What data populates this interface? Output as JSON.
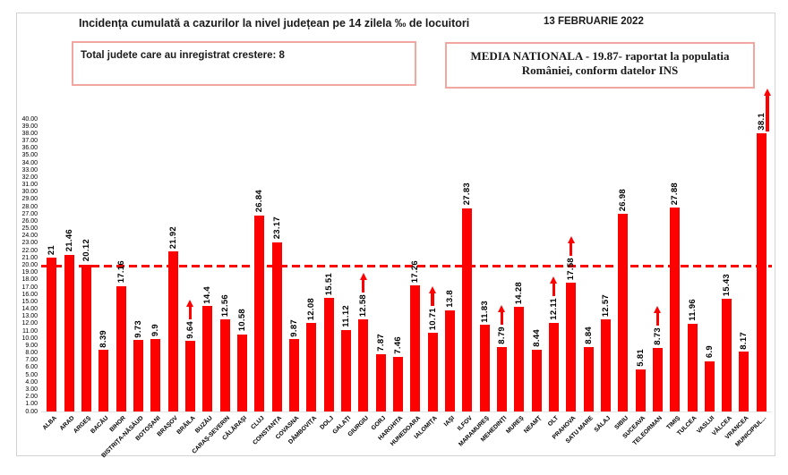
{
  "header": {
    "title": "Incidența cumulată a cazurilor la nivel județean pe 14 zilela ‰ de locuitori",
    "date": "13 FEBRUARIE 2022",
    "growth_box_text": "Total judete care au inregistrat crestere: 8",
    "national_average_line1": "MEDIA NATIONALA - 19.87-  raportat la populatia",
    "national_average_line2": "României, conform datelor INS"
  },
  "colors": {
    "bar_red": "#ff0000",
    "dashed_line_red": "#ff0000",
    "box_border_pink": "#f2a6a0",
    "frame_border_gray": "#d2d2d2",
    "text_black": "#1a1a1a"
  },
  "chart_data": {
    "type": "bar",
    "title": "Incidența cumulată a cazurilor la nivel județean pe 14 zilela ‰ de locuitori",
    "xlabel": "",
    "ylabel": "",
    "ylim": [
      0,
      40
    ],
    "y_tick_step": 1,
    "y_tick_format": "0.00",
    "grid": false,
    "legend": false,
    "reference_line_value": 19.87,
    "reference_line_style": "red-dashed",
    "annotations": [
      "13 FEBRUARIE 2022",
      "Total judete care au inregistrat crestere: 8",
      "MEDIA NATIONALA - 19.87- raportat la populatia României, conform datelor INS"
    ],
    "categories": [
      "ALBA",
      "ARAD",
      "ARGEȘ",
      "BACĂU",
      "BIHOR",
      "BISTRIȚA-NĂSĂUD",
      "BOTOȘANI",
      "BRAȘOV",
      "BRĂILA",
      "BUZĂU",
      "CARAȘ-SEVERIN",
      "CĂLĂRAȘI",
      "CLUJ",
      "CONSTANȚA",
      "COVASNA",
      "DÂMBOVIȚA",
      "DOLJ",
      "GALAȚI",
      "GIURGIU",
      "GORJ",
      "HARGHITA",
      "HUNEDOARA",
      "IALOMIȚA",
      "IAȘI",
      "ILFOV",
      "MARAMUREȘ",
      "MEHEDINȚI",
      "MUREȘ",
      "NEAMȚ",
      "OLT",
      "PRAHOVA",
      "SATU MARE",
      "SĂLAJ",
      "SIBIU",
      "SUCEAVA",
      "TELEORMAN",
      "TIMIȘ",
      "TULCEA",
      "VASLUI",
      "VÂLCEA",
      "VRANCEA",
      "MUNICIPIUL..."
    ],
    "values": [
      21,
      21.46,
      20.12,
      8.39,
      17.16,
      9.73,
      9.9,
      21.92,
      9.64,
      14.4,
      12.56,
      10.58,
      26.84,
      23.17,
      9.87,
      12.08,
      15.51,
      11.12,
      12.58,
      7.87,
      7.46,
      17.26,
      10.71,
      13.8,
      27.83,
      11.83,
      8.79,
      14.28,
      8.44,
      12.11,
      17.58,
      8.84,
      12.57,
      26.98,
      5.81,
      8.73,
      27.88,
      11.96,
      6.9,
      15.43,
      8.17,
      38.1
    ],
    "increase_arrow_indices": [
      8,
      18,
      22,
      26,
      29,
      30,
      35,
      41
    ],
    "counties_with_increase_count": 8
  }
}
